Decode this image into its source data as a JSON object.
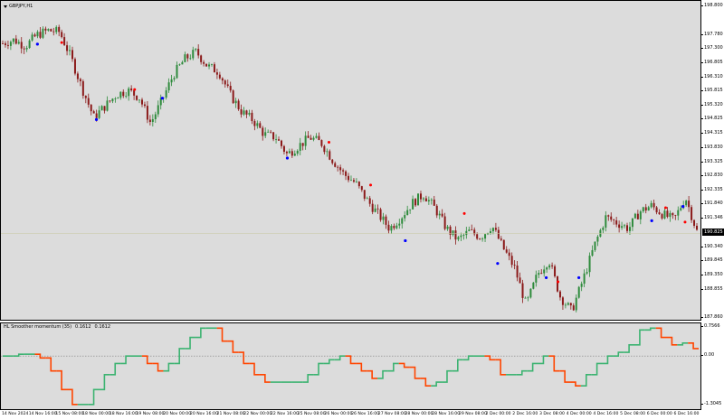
{
  "chart": {
    "symbol_label": "GBPJPY,H1",
    "bg_color": "#dcdcdc",
    "bull_color": "#2e8b3c",
    "bear_color": "#8b1a1a",
    "buy_marker_color": "#0000ff",
    "sell_marker_color": "#ff0000",
    "last_price_label": "190.825"
  },
  "price_axis": {
    "ticks": [
      "198.800",
      "197.780",
      "197.300",
      "196.805",
      "196.310",
      "195.815",
      "195.320",
      "194.825",
      "194.315",
      "193.830",
      "193.325",
      "192.830",
      "192.335",
      "191.840",
      "191.346",
      "190.340",
      "189.845",
      "189.350",
      "188.855",
      "187.860"
    ]
  },
  "indicator": {
    "name": "HL Smoother momentum (35)",
    "value_1": "0.1612",
    "value_2": "0.1612",
    "up_color": "#3cb371",
    "down_color": "#ff4500",
    "ticks": [
      "0.7566",
      "0.00",
      "-1.3045"
    ]
  },
  "time_axis": {
    "labels": [
      "14 Nov 2024",
      "14 Nov 16:00",
      "15 Nov 08:00",
      "18 Nov 00:00",
      "18 Nov 16:00",
      "19 Nov 08:00",
      "20 Nov 00:00",
      "20 Nov 16:00",
      "21 Nov 08:00",
      "22 Nov 00:00",
      "22 Nov 16:00",
      "25 Nov 08:00",
      "26 Nov 00:00",
      "26 Nov 16:00",
      "27 Nov 08:00",
      "28 Nov 00:00",
      "28 Nov 16:00",
      "29 Nov 08:00",
      "2 Dec 00:00",
      "2 Dec 16:00",
      "3 Dec 08:00",
      "4 Dec 00:00",
      "4 Dec 16:00",
      "5 Dec 08:00",
      "6 Dec 00:00",
      "6 Dec 16:00"
    ]
  },
  "chart_data": {
    "type": "candlestick",
    "close_path": [
      197.5,
      197.62,
      197.4,
      197.8,
      197.95,
      197.9,
      197.0,
      195.9,
      194.9,
      195.3,
      195.7,
      195.85,
      195.6,
      194.7,
      195.5,
      196.4,
      196.95,
      197.2,
      196.7,
      196.5,
      195.7,
      195.1,
      194.8,
      194.3,
      194.2,
      193.6,
      193.9,
      194.2,
      194.0,
      193.4,
      192.9,
      192.6,
      192.0,
      191.5,
      191.0,
      191.4,
      191.9,
      192.2,
      191.7,
      191.0,
      190.6,
      190.9,
      190.7,
      191.1,
      190.3,
      189.6,
      188.3,
      189.4,
      189.9,
      188.6,
      188.1,
      189.2,
      190.4,
      191.4,
      191.2,
      191.0,
      191.6,
      191.8,
      191.5,
      191.3,
      192.1,
      190.9
    ],
    "buy_markers": [
      [
        0.05,
        197.6
      ],
      [
        0.135,
        194.95
      ],
      [
        0.23,
        195.7
      ],
      [
        0.41,
        193.6
      ],
      [
        0.58,
        190.7
      ],
      [
        0.713,
        189.9
      ],
      [
        0.783,
        189.4
      ],
      [
        0.83,
        189.4
      ],
      [
        0.935,
        191.4
      ],
      [
        0.98,
        191.9
      ]
    ],
    "sell_markers": [
      [
        0.085,
        197.4
      ],
      [
        0.19,
        195.75
      ],
      [
        0.47,
        193.9
      ],
      [
        0.53,
        192.4
      ],
      [
        0.665,
        191.4
      ],
      [
        0.8,
        189.0
      ],
      [
        0.955,
        191.6
      ],
      [
        0.983,
        191.1
      ]
    ],
    "momentum": [
      0.0,
      0.0,
      0.05,
      0.05,
      -0.05,
      -0.4,
      -0.9,
      -1.3,
      -1.3,
      -0.9,
      -0.5,
      -0.2,
      0.0,
      0.0,
      -0.2,
      -0.4,
      -0.2,
      0.2,
      0.5,
      0.75,
      0.75,
      0.4,
      0.1,
      -0.2,
      -0.5,
      -0.7,
      -0.7,
      -0.7,
      -0.7,
      -0.5,
      -0.2,
      -0.1,
      0.0,
      -0.2,
      -0.4,
      -0.6,
      -0.4,
      -0.2,
      -0.3,
      -0.6,
      -0.8,
      -0.7,
      -0.4,
      -0.1,
      0.0,
      0.0,
      -0.1,
      -0.5,
      -0.5,
      -0.4,
      -0.2,
      0.0,
      -0.4,
      -0.7,
      -0.8,
      -0.5,
      -0.2,
      0.0,
      0.1,
      0.3,
      0.7,
      0.75,
      0.5,
      0.3,
      0.35,
      0.2
    ],
    "ylim_price": [
      187.86,
      198.8
    ],
    "ylim_indicator": [
      -1.3045,
      0.7566
    ]
  }
}
